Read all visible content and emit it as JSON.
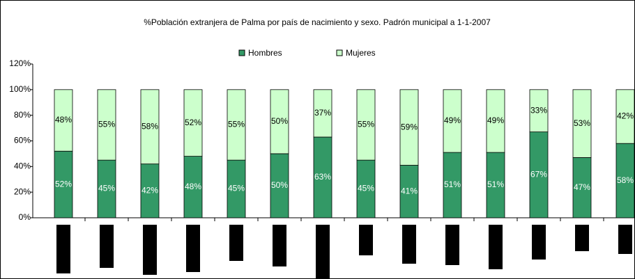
{
  "chart_data": {
    "type": "stacked_bar",
    "title": "%Población extranjera de Palma por país de nacimiento y sexo. Padrón municipal a 1-1-2007",
    "categories": [
      null,
      null,
      null,
      null,
      null,
      null,
      null,
      null,
      null,
      null,
      null,
      null,
      null,
      null
    ],
    "series": [
      {
        "name": "Hombres",
        "color": "#339966",
        "values": [
          52,
          45,
          42,
          48,
          45,
          50,
          63,
          45,
          41,
          51,
          51,
          67,
          47,
          58
        ],
        "value_labels": [
          "52%",
          "45%",
          "42%",
          "48%",
          "45%",
          "50%",
          "63%",
          "45%",
          "41%",
          "51%",
          "51%",
          "67%",
          "47%",
          "58%"
        ]
      },
      {
        "name": "Mujeres",
        "color": "#ccffcc",
        "values": [
          48,
          55,
          58,
          52,
          55,
          50,
          37,
          55,
          59,
          49,
          49,
          33,
          53,
          42
        ],
        "value_labels": [
          "48%",
          "55%",
          "58%",
          "52%",
          "55%",
          "50%",
          "37%",
          "55%",
          "59%",
          "49%",
          "49%",
          "33%",
          "53%",
          "42%"
        ]
      }
    ],
    "ylim": [
      0,
      120
    ],
    "yticks": [
      {
        "value": 0,
        "label": "0%"
      },
      {
        "value": 20,
        "label": "20%"
      },
      {
        "value": 40,
        "label": "40%"
      },
      {
        "value": 60,
        "label": "60%"
      },
      {
        "value": 80,
        "label": "80%"
      },
      {
        "value": 100,
        "label": "100%"
      },
      {
        "value": 120,
        "label": "120%"
      }
    ],
    "legend": "top"
  }
}
